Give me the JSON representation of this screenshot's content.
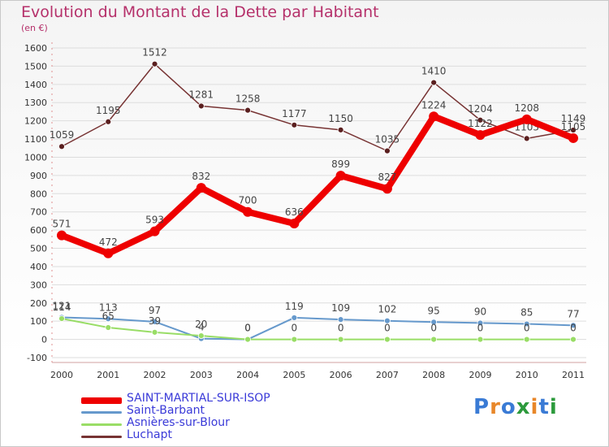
{
  "title": "Evolution du Montant de la Dette par Habitant",
  "subtitle": "(en €)",
  "logo_text": "Proxiti",
  "chart_data": {
    "type": "line",
    "categories": [
      "2000",
      "2001",
      "2002",
      "2003",
      "2004",
      "2005",
      "2006",
      "2007",
      "2008",
      "2009",
      "2010",
      "2011"
    ],
    "ylim": [
      -100,
      1600
    ],
    "y_ticks": [
      -100,
      0,
      100,
      200,
      300,
      400,
      500,
      600,
      700,
      800,
      900,
      1000,
      1100,
      1200,
      1300,
      1400,
      1500,
      1600
    ],
    "grid": "horizontal",
    "legend_position": "bottom-left",
    "series": [
      {
        "name": "SAINT-MARTIAL-SUR-ISOP",
        "color": "#ee0000",
        "width": 8,
        "values": [
          571,
          472,
          593,
          832,
          700,
          636,
          899,
          827,
          1224,
          1122,
          1208,
          1105
        ]
      },
      {
        "name": "Saint-Barbant",
        "color": "#6699cc",
        "width": 2,
        "values": [
          121,
          113,
          97,
          4,
          0,
          119,
          109,
          102,
          95,
          90,
          85,
          77
        ]
      },
      {
        "name": "Asnières-sur-Blour",
        "color": "#99dd66",
        "width": 2,
        "values": [
          114,
          65,
          39,
          20,
          0,
          0,
          0,
          0,
          0,
          0,
          0,
          0
        ]
      },
      {
        "name": "Luchapt",
        "color": "#773333",
        "width": 1.5,
        "values": [
          1059,
          1195,
          1512,
          1281,
          1258,
          1177,
          1150,
          1035,
          1410,
          1204,
          1103,
          1149
        ]
      }
    ]
  }
}
